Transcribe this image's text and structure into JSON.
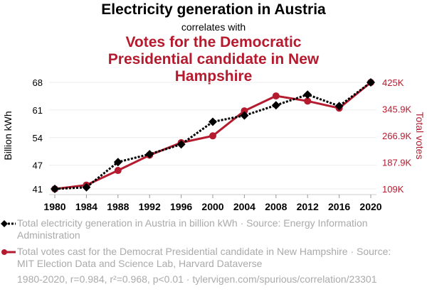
{
  "header": {
    "title": "Electricity generation in Austria",
    "subtitle": "correlates with",
    "title2": "Votes for the Democratic Presidential candidate in New Hampshire"
  },
  "legend": {
    "series1": "Total electricity generation in Austria in billion kWh · Source: Energy Information Administration",
    "series2": "Total votes cast for the Democrat Presidential candidate in New Hampshire · Source: MIT Election Data and Science Lab, Harvard Dataverse"
  },
  "footer": "1980-2020, r=0.984, r²=0.968, p<0.01 · tylervigen.com/spurious/correlation/23301",
  "colors": {
    "series1": "#000000",
    "series2": "#b51a2e",
    "grid": "#eeeeee",
    "legend_text": "#aaaaaa"
  },
  "chart_data": {
    "type": "line",
    "title": "Electricity generation in Austria correlates with Votes for the Democratic Presidential candidate in New Hampshire",
    "x": [
      1980,
      1984,
      1988,
      1992,
      1996,
      2000,
      2004,
      2008,
      2012,
      2016,
      2020
    ],
    "xticks": [
      "1980",
      "1984",
      "1988",
      "1992",
      "1996",
      "2000",
      "2004",
      "2008",
      "2012",
      "2016",
      "2020"
    ],
    "ylabel": "Billion kWh",
    "y2label": "Total votes",
    "ylim": [
      41,
      68
    ],
    "yticks": [
      41,
      47,
      54,
      61,
      68
    ],
    "ytick_labels": [
      "41",
      "47",
      "54",
      "61",
      "68"
    ],
    "y2lim": [
      109000,
      425000
    ],
    "y2ticks": [
      109000,
      187900,
      266900,
      345900,
      425000
    ],
    "y2tick_labels": [
      "109K",
      "187.9K",
      "266.9K",
      "345.9K",
      "425K"
    ],
    "grid": true,
    "legend_position": "bottom",
    "series": [
      {
        "name": "Total electricity generation in Austria in billion kWh",
        "axis": "left",
        "style": "dotted-diamond",
        "values": [
          41.0,
          41.4,
          47.8,
          49.8,
          52.3,
          58.0,
          59.6,
          62.2,
          64.9,
          62.0,
          68.0
        ]
      },
      {
        "name": "Total votes cast for the Democrat Presidential candidate in New Hampshire",
        "axis": "right",
        "style": "solid-circle",
        "values": [
          108864,
          120395,
          163696,
          209040,
          246214,
          266348,
          340511,
          384826,
          369561,
          348526,
          424937
        ]
      }
    ]
  }
}
